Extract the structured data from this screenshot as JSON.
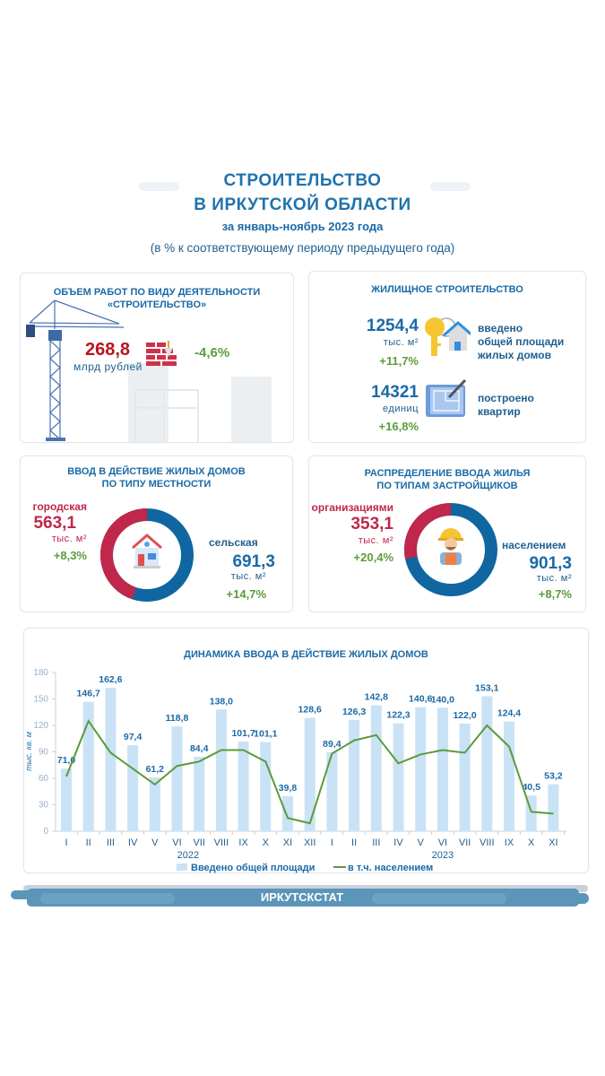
{
  "header": {
    "title_line1": "СТРОИТЕЛЬСТВО",
    "title_line2": "В ИРКУТСКОЙ ОБЛАСТИ",
    "period": "за январь-ноябрь 2023 года",
    "note": "(в % к соответствующему периоду предыдущего года)"
  },
  "works": {
    "title1": "ОБЪЕМ РАБОТ ПО ВИДУ ДЕЯТЕЛЬНОСТИ",
    "title2": "«СТРОИТЕЛЬСТВО»",
    "value": "268,8",
    "unit": "млрд рублей",
    "change": "-4,6%",
    "icons": [
      "crane-icon",
      "bricks-icon"
    ]
  },
  "housing": {
    "title": "ЖИЛИЩНОЕ СТРОИТЕЛЬСТВО",
    "area": {
      "value": "1254,4",
      "unit": "тыс. м²",
      "change": "+11,7%",
      "label1": "введено",
      "label2": "общей площади",
      "label3": "жилых домов",
      "icon": "key-house-icon"
    },
    "flats": {
      "value": "14321",
      "unit": "единиц",
      "change": "+16,8%",
      "label1": "построено",
      "label2": "квартир",
      "icon": "blueprint-icon"
    }
  },
  "by_locality": {
    "title1": "ВВОД В ДЕЙСТВИЕ ЖИЛЫХ ДОМОВ",
    "title2": "ПО ТИПУ МЕСТНОСТИ",
    "urban": {
      "label": "городская",
      "value": "563,1",
      "unit": "тыс. м²",
      "change": "+8,3%"
    },
    "rural": {
      "label": "сельская",
      "value": "691,3",
      "unit": "тыс. м²",
      "change": "+14,7%"
    },
    "colors": {
      "urban": "#c0274a",
      "rural": "#0f66a0"
    }
  },
  "by_developer": {
    "title1": "РАСПРЕДЕЛЕНИЕ ВВОДА ЖИЛЬЯ",
    "title2": "ПО ТИПАМ ЗАСТРОЙЩИКОВ",
    "orgs": {
      "label": "организациями",
      "value": "353,1",
      "unit": "тыс. м²",
      "change": "+20,4%"
    },
    "people": {
      "label": "населением",
      "value": "901,3",
      "unit": "тыс. м²",
      "change": "+8,7%"
    },
    "colors": {
      "orgs": "#c0274a",
      "people": "#0f66a0"
    }
  },
  "chart_data": {
    "type": "bar+line",
    "title": "ДИНАМИКА ВВОДА В ДЕЙСТВИЕ ЖИЛЫХ ДОМОВ",
    "ylabel": "тыс. кв. м",
    "ylim": [
      0,
      180
    ],
    "yticks": [
      0,
      30,
      60,
      90,
      120,
      150,
      180
    ],
    "categories": [
      "I",
      "II",
      "III",
      "IV",
      "V",
      "VI",
      "VII",
      "VIII",
      "IX",
      "X",
      "XI",
      "XII",
      "I",
      "II",
      "III",
      "IV",
      "V",
      "VI",
      "VII",
      "VIII",
      "IX",
      "X",
      "XI"
    ],
    "years": [
      {
        "label": "2022",
        "from": 0,
        "to": 11
      },
      {
        "label": "2023",
        "from": 12,
        "to": 22
      }
    ],
    "series": [
      {
        "name": "Введено общей площади",
        "type": "bar",
        "color": "#c9e2f6",
        "values": [
          71.0,
          146.7,
          162.6,
          97.4,
          61.2,
          118.8,
          84.4,
          138.0,
          101.7,
          101.1,
          39.8,
          128.6,
          89.4,
          126.3,
          142.8,
          122.3,
          140.6,
          140.0,
          122.0,
          153.1,
          124.4,
          40.5,
          53.2
        ],
        "labels": [
          "71,0",
          "146,7",
          "162,6",
          "97,4",
          "61,2",
          "118,8",
          "84,4",
          "138,0",
          "101,7",
          "101,1",
          "39,8",
          "128,6",
          "89,4",
          "126,3",
          "142,8",
          "122,3",
          "140,6",
          "140,0",
          "122,0",
          "153,1",
          "124,4",
          "40,5",
          "53,2"
        ]
      },
      {
        "name": "в т.ч. населением",
        "type": "line",
        "color": "#5b9b3a",
        "values": [
          62,
          125,
          89,
          71,
          53,
          74,
          79,
          92,
          92,
          79,
          15,
          9,
          88,
          103,
          109,
          77,
          87,
          92,
          89,
          120,
          96,
          22,
          20
        ]
      }
    ],
    "legend": "bottom",
    "grid": false
  },
  "footer": {
    "label": "ИРКУТСКСТАТ"
  }
}
